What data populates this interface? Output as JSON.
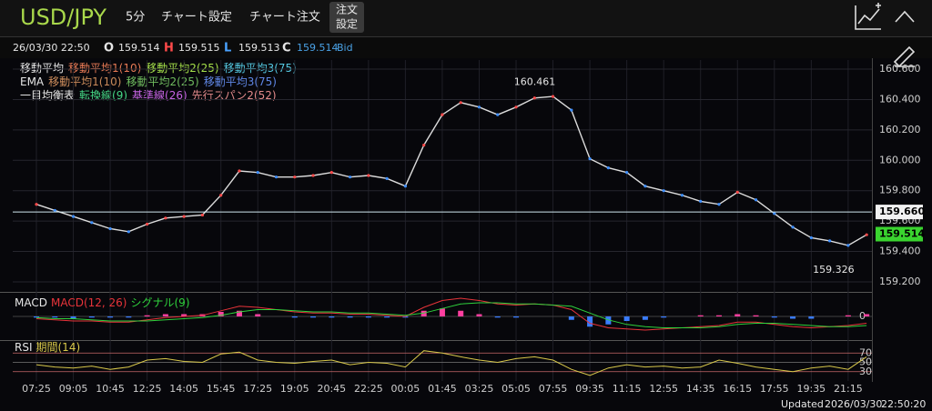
{
  "header": {
    "symbol": "USD/JPY",
    "interval": "5分",
    "menu": [
      "チャート設定",
      "チャート注文"
    ],
    "order_settings": [
      "注文",
      "設定"
    ]
  },
  "quote": {
    "datetime": "26/03/30 22:50",
    "open_label": "O",
    "open": "159.514",
    "high_label": "H",
    "high": "159.515",
    "low_label": "L",
    "low": "159.513",
    "close_label": "C",
    "close": "159.514",
    "side": "Bid"
  },
  "indicator_legend": [
    [
      "移動平均",
      "移動平均1(10)",
      "移動平均2(25)",
      "移動平均3(75)"
    ],
    [
      "EMA",
      "移動平均1(10)",
      "移動平均2(25)",
      "移動平均3(75)"
    ],
    [
      "一目均衡表",
      "転換線(9)",
      "基準線(26)",
      "先行スパン2(52)"
    ]
  ],
  "chart_data": [
    {
      "type": "line",
      "categories": [
        "07:25",
        null,
        "09:05",
        null,
        "10:45",
        null,
        "12:25",
        null,
        "14:05",
        null,
        "15:45",
        null,
        "17:25",
        null,
        "19:05",
        null,
        "20:45",
        null,
        "22:25",
        null,
        "00:05",
        null,
        "01:45",
        null,
        "03:25",
        null,
        "05:05",
        null,
        "07:55",
        null,
        "09:35",
        null,
        "11:15",
        null,
        "12:55",
        null,
        "14:35",
        null,
        "16:15",
        null,
        "17:55",
        null,
        "19:35",
        null,
        "21:15",
        null
      ],
      "values": [
        159.71,
        159.67,
        159.63,
        159.59,
        159.55,
        159.53,
        159.58,
        159.62,
        159.63,
        159.64,
        159.77,
        159.93,
        159.92,
        159.89,
        159.89,
        159.9,
        159.92,
        159.89,
        159.9,
        159.88,
        159.83,
        160.1,
        160.3,
        160.38,
        160.35,
        160.3,
        160.35,
        160.41,
        160.42,
        160.33,
        160.01,
        159.95,
        159.92,
        159.83,
        159.8,
        159.77,
        159.73,
        159.71,
        159.79,
        159.74,
        159.65,
        159.56,
        159.49,
        159.47,
        159.44,
        159.51
      ],
      "color": "#dcdcdc",
      "ylim": [
        159.14,
        160.66
      ],
      "yticks": [
        {
          "value": 159.2,
          "label": "159.200"
        },
        {
          "value": 159.4,
          "label": "159.400"
        },
        {
          "value": 159.6,
          "label": "159.600"
        },
        {
          "value": 159.8,
          "label": "159.800"
        },
        {
          "value": 160.0,
          "label": "160.000"
        },
        {
          "value": 160.2,
          "label": "160.200"
        },
        {
          "value": 160.4,
          "label": "160.400"
        },
        {
          "value": 160.6,
          "label": "160.600"
        }
      ],
      "grid": true,
      "high_label": 160.461,
      "low_label": 159.326,
      "price_line": {
        "value": 159.66,
        "label": "159.660"
      },
      "last_price": 159.514
    },
    {
      "type": "line",
      "title": "MACD",
      "series": [
        {
          "name": "MACD(12, 26)",
          "color": "#e8343a",
          "values": [
            -0.02,
            -0.03,
            -0.04,
            -0.04,
            -0.05,
            -0.05,
            -0.03,
            -0.01,
            0.0,
            0.01,
            0.05,
            0.09,
            0.08,
            0.06,
            0.04,
            0.03,
            0.03,
            0.02,
            0.02,
            0.01,
            0.0,
            0.08,
            0.14,
            0.16,
            0.14,
            0.11,
            0.1,
            0.11,
            0.1,
            0.06,
            -0.06,
            -0.1,
            -0.11,
            -0.12,
            -0.11,
            -0.1,
            -0.09,
            -0.08,
            -0.05,
            -0.05,
            -0.07,
            -0.09,
            -0.1,
            -0.09,
            -0.08,
            -0.06
          ]
        },
        {
          "name": "シグナル(9)",
          "color": "#2fd13c",
          "values": [
            -0.01,
            -0.02,
            -0.02,
            -0.03,
            -0.04,
            -0.04,
            -0.04,
            -0.03,
            -0.02,
            -0.01,
            0.01,
            0.04,
            0.06,
            0.06,
            0.05,
            0.04,
            0.04,
            0.03,
            0.03,
            0.02,
            0.01,
            0.03,
            0.07,
            0.11,
            0.12,
            0.12,
            0.11,
            0.11,
            0.1,
            0.09,
            0.03,
            -0.03,
            -0.07,
            -0.09,
            -0.1,
            -0.1,
            -0.1,
            -0.09,
            -0.07,
            -0.06,
            -0.06,
            -0.07,
            -0.08,
            -0.09,
            -0.09,
            -0.08
          ]
        }
      ],
      "histogram": true,
      "ylim": [
        -0.2,
        0.2
      ],
      "yticks": [
        0
      ]
    },
    {
      "type": "line",
      "title": "RSI",
      "series": [
        {
          "name": "期間(14)",
          "color": "#d8c84a",
          "values": [
            45,
            40,
            38,
            42,
            35,
            40,
            55,
            58,
            52,
            50,
            68,
            72,
            55,
            50,
            48,
            52,
            55,
            45,
            50,
            48,
            40,
            75,
            70,
            62,
            55,
            50,
            58,
            62,
            55,
            35,
            22,
            38,
            45,
            40,
            42,
            38,
            40,
            55,
            48,
            40,
            35,
            30,
            38,
            42,
            35,
            62
          ]
        }
      ],
      "ylim": [
        10,
        94
      ],
      "yticks": [
        70,
        50,
        30
      ]
    }
  ],
  "footer": {
    "label": "Updated",
    "date": "2026/03/30",
    "time": "22:50:20"
  }
}
